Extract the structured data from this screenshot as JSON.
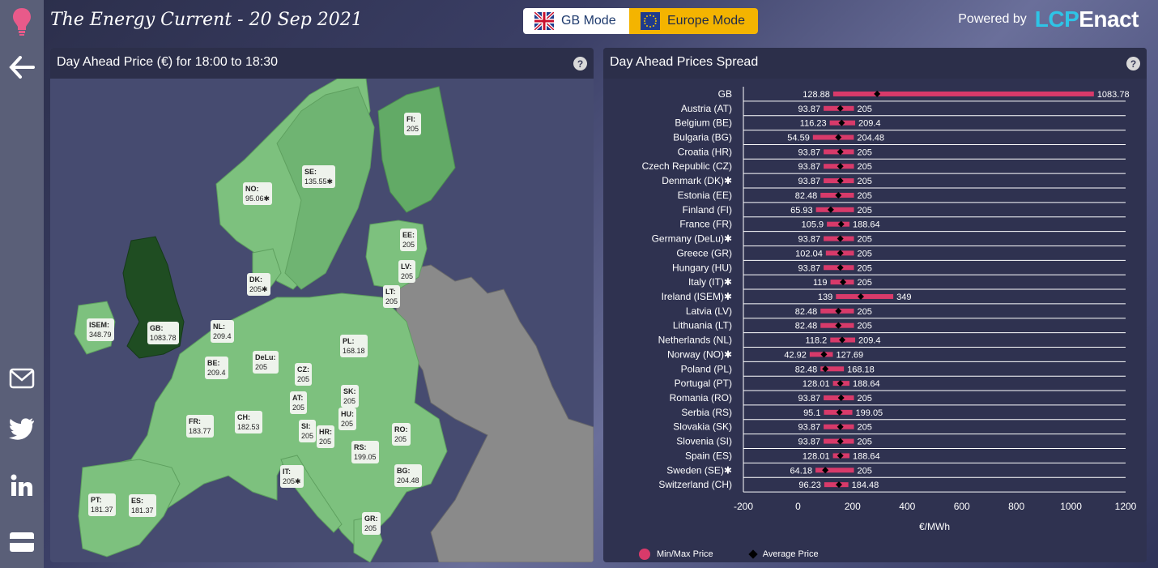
{
  "header": {
    "title": "The Energy Current  - 20 Sep 2021",
    "gb_mode_label": "GB Mode",
    "europe_mode_label": "Europe Mode",
    "powered_by": "Powered by",
    "logo_lcp": "LCP",
    "logo_enact": "Enact"
  },
  "sidebar": {
    "items": [
      {
        "icon": "bulb-icon"
      },
      {
        "icon": "back-arrow-icon"
      },
      {
        "icon": "mail-icon"
      },
      {
        "icon": "twitter-icon"
      },
      {
        "icon": "linkedin-icon"
      },
      {
        "icon": "card-icon"
      }
    ]
  },
  "map_panel": {
    "title": "Day Ahead Price (€) for 18:00 to 18:30",
    "help": "?",
    "labels": [
      {
        "code": "FI:",
        "value": "205"
      },
      {
        "code": "SE:",
        "value": "135.55✱"
      },
      {
        "code": "NO:",
        "value": "95.06✱"
      },
      {
        "code": "EE:",
        "value": "205"
      },
      {
        "code": "LV:",
        "value": "205"
      },
      {
        "code": "LT:",
        "value": "205"
      },
      {
        "code": "DK:",
        "value": "205✱"
      },
      {
        "code": "ISEM:",
        "value": "348.79"
      },
      {
        "code": "GB:",
        "value": "1083.78"
      },
      {
        "code": "NL:",
        "value": "209.4"
      },
      {
        "code": "BE:",
        "value": "209.4"
      },
      {
        "code": "DeLu:",
        "value": "205"
      },
      {
        "code": "PL:",
        "value": "168.18"
      },
      {
        "code": "CZ:",
        "value": "205"
      },
      {
        "code": "SK:",
        "value": "205"
      },
      {
        "code": "AT:",
        "value": "205"
      },
      {
        "code": "HU:",
        "value": "205"
      },
      {
        "code": "FR:",
        "value": "183.77"
      },
      {
        "code": "CH:",
        "value": "182.53"
      },
      {
        "code": "SI:",
        "value": "205"
      },
      {
        "code": "HR:",
        "value": "205"
      },
      {
        "code": "RO:",
        "value": "205"
      },
      {
        "code": "RS:",
        "value": "199.05"
      },
      {
        "code": "IT:",
        "value": "205✱"
      },
      {
        "code": "BG:",
        "value": "204.48"
      },
      {
        "code": "PT:",
        "value": "181.37"
      },
      {
        "code": "ES:",
        "value": "181.37"
      },
      {
        "code": "GR:",
        "value": "205"
      }
    ]
  },
  "spread_panel": {
    "title": "Day Ahead Prices Spread",
    "help": "?",
    "legend_minmax": "Min/Max Price",
    "legend_avg": "Average Price",
    "colors": {
      "bar": "#d83a6a",
      "avg": "#000000",
      "grid": "#ffffff"
    }
  },
  "chart_data": {
    "type": "bar",
    "orientation": "horizontal",
    "xlabel": "€/MWh",
    "xlim": [
      -200,
      1200
    ],
    "xticks": [
      -200,
      0,
      200,
      400,
      600,
      800,
      1000,
      1200
    ],
    "rows": [
      {
        "name": "GB",
        "min": 128.88,
        "max": 1083.78,
        "avg": 290
      },
      {
        "name": "Austria (AT)",
        "min": 93.87,
        "max": 205,
        "avg": 155
      },
      {
        "name": "Belgium (BE)",
        "min": 116.23,
        "max": 209.4,
        "avg": 160
      },
      {
        "name": "Bulgaria (BG)",
        "min": 54.59,
        "max": 204.48,
        "avg": 148
      },
      {
        "name": "Croatia (HR)",
        "min": 93.87,
        "max": 205,
        "avg": 155
      },
      {
        "name": "Czech Republic (CZ)",
        "min": 93.87,
        "max": 205,
        "avg": 155
      },
      {
        "name": "Denmark (DK)✱",
        "min": 93.87,
        "max": 205,
        "avg": 155
      },
      {
        "name": "Estonia (EE)",
        "min": 82.48,
        "max": 205,
        "avg": 148
      },
      {
        "name": "Finland (FI)",
        "min": 65.93,
        "max": 205,
        "avg": 120
      },
      {
        "name": "France (FR)",
        "min": 105.9,
        "max": 188.64,
        "avg": 158
      },
      {
        "name": "Germany (DeLu)✱",
        "min": 93.87,
        "max": 205,
        "avg": 155
      },
      {
        "name": "Greece (GR)",
        "min": 102.04,
        "max": 205,
        "avg": 155
      },
      {
        "name": "Hungary (HU)",
        "min": 93.87,
        "max": 205,
        "avg": 155
      },
      {
        "name": "Italy (IT)✱",
        "min": 119,
        "max": 205,
        "avg": 165
      },
      {
        "name": "Ireland (ISEM)✱",
        "min": 139,
        "max": 349,
        "avg": 230
      },
      {
        "name": "Latvia (LV)",
        "min": 82.48,
        "max": 205,
        "avg": 148
      },
      {
        "name": "Lithuania (LT)",
        "min": 82.48,
        "max": 205,
        "avg": 148
      },
      {
        "name": "Netherlands (NL)",
        "min": 118.2,
        "max": 209.4,
        "avg": 162
      },
      {
        "name": "Norway (NO)✱",
        "min": 42.92,
        "max": 127.69,
        "avg": 95
      },
      {
        "name": "Poland (PL)",
        "min": 82.48,
        "max": 168.18,
        "avg": 100
      },
      {
        "name": "Portugal (PT)",
        "min": 128.01,
        "max": 188.64,
        "avg": 155
      },
      {
        "name": "Romania (RO)",
        "min": 93.87,
        "max": 205,
        "avg": 158
      },
      {
        "name": "Serbia (RS)",
        "min": 95.1,
        "max": 199.05,
        "avg": 152
      },
      {
        "name": "Slovakia (SK)",
        "min": 93.87,
        "max": 205,
        "avg": 155
      },
      {
        "name": "Slovenia (SI)",
        "min": 93.87,
        "max": 205,
        "avg": 155
      },
      {
        "name": "Spain (ES)",
        "min": 128.01,
        "max": 188.64,
        "avg": 155
      },
      {
        "name": "Sweden (SE)✱",
        "min": 64.18,
        "max": 205,
        "avg": 100
      },
      {
        "name": "Switzerland (CH)",
        "min": 96.23,
        "max": 184.48,
        "avg": 150
      }
    ]
  }
}
